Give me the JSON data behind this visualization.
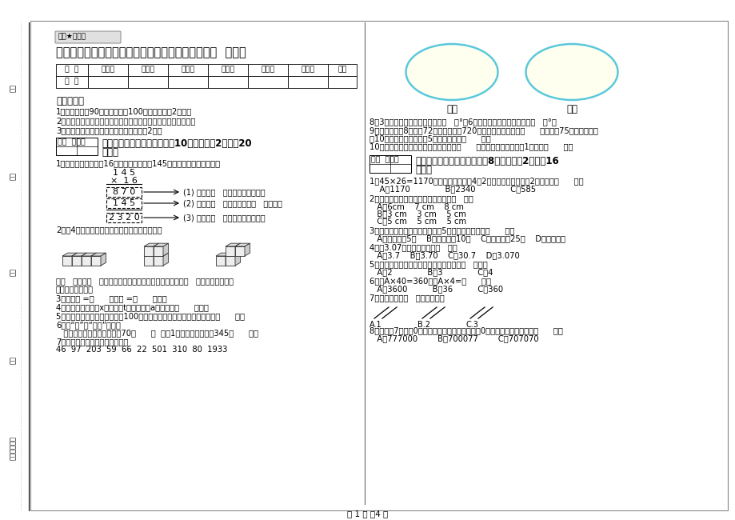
{
  "bg_color": "#ffffff",
  "page_width": 9.2,
  "page_height": 6.5,
  "title": "鄂尔多斯市重点小学四年级数学下学期能力检测试题  附答案",
  "watermark": "绝密★启用前",
  "table_headers": [
    "题  号",
    "填空题",
    "选择题",
    "判断题",
    "计算题",
    "综合题",
    "应用题",
    "总分"
  ],
  "table_row": [
    "得  分",
    "",
    "",
    "",
    "",
    "",
    "",
    ""
  ],
  "notice_title": "考试须知：",
  "notice_items": [
    "1、考试时间：90分钟，满分为100分（含卷面分2分）。",
    "2、请首先按要求在试卷的指定位置域写您的姓名、班级、学号。",
    "3、不要在试卷上乱写乱画，卷面不整洁扠2分。"
  ],
  "section1_header": "一、用心思考，正确填空（入10小题，每题2分，入20",
  "section1_suffix": "分）。",
  "q1_text": "1、王老板进货，买了16套服装，每套服装145元。根据条件完成填空。",
  "multiplication": [
    "1 4 5",
    "×  1 6",
    "8 7 0",
    "1 4 5",
    "2 3 2 0"
  ],
  "mult_annotations": [
    "(1) 表示买（   ）套服装应付的錢。",
    "(2) 表示买（   ）套服装应付（   ）元錢。",
    "(3) 表示买（   ）套服装应付的錢。"
  ],
  "q2_text": "2、用4个同样大的正方体分别摆成下面的形状：",
  "q2_bottom": "从（   ）面和（   ）面看，这三个物体的形状完全相同；从（   ）面看，这三个物",
  "q2_bottom2": "的形状各不相同。",
  "q3_text": "3、一周角 =（      ）直角 =（      ）平角",
  "q4_text": "4、一个工厂原有煮x吞，烧了t天，每天烧a吞，还剩（      ）吞。",
  "q5_text": "5、喷火坦克的火焰可以以每秒100米的射速喷向目标，它的速度可写作（      ）。",
  "q6_title": "6、用“升”和“毫升”填空。",
  "q6_text": "   太阳能热水器的水筱能装汴70（      ）  一符1小洋人妙恋饮料是345（      ）。",
  "q7_text": "7、把下列各数填入相应的圈里。",
  "q7_numbers": "46  97  203  59  66  22  501  310  80  1933",
  "oval_labels": [
    "奇数",
    "偶数"
  ],
  "q8_text": "8、3时整，时针与分钟的夹角是（   ）°；6时整，时针与分钟的夹角是（   ）°。",
  "q9_text": "9、一个因数是8，积是72，要使积变成720，则另一个因数应该（      ）；积是75，一个因数扩",
  "q9_text2": "兤10倍，另一个因数缩小5倍，则积变成（      ）。",
  "q10_text": "10、最小的五位数和最大的四位数相差（      ），比最小的六位数多1的数是（      ）。",
  "section2_header": "二、反复比较，慎重选择（兲8小题，每题2分，入16",
  "section2_suffix": "分）。",
  "mc1_text": "1、45×26=1170，其中一个因数执4大2倍，另一个因数缩小2倍，积是（      ）。",
  "mc1_opts": "    A、1170              B、2340              C、585",
  "mc2_text": "2、下面各组线段不能围成三角形的是（   ）。",
  "mc2_opts_a": "   A、6cm    7 cm    8 cm",
  "mc2_opts_b": "   B、3 cm    3 cm    5 cm",
  "mc2_opts_c": "   C、5 cm    5 cm    5 cm",
  "mc3_text": "3、乘法算式中，两个因数都扩大5倍，得到的积等于（      ）。",
  "mc3_opts": "   A、原来积的5倍    B、原来积的10倍    C、原来积的25倍    D、原来的积",
  "mc4_text": "4、与3.07大小相等的数是（   ）。",
  "mc4_opts": "   A、3.7    B、3.70    C、30.7    D、3.070",
  "mc5_text": "5、两条互相垂直的直线相交所成的直角有（   ）个。",
  "mc5_opts": "   A、2              B、3              C、4",
  "mc6_text": "6、若A×40=360，则A×4=（      ）。",
  "mc6_opts": "   A、3600          B、36          C、360",
  "mc7_text": "7、在下图中有（   ）组平行线。",
  "mc8_text": "8、用三个7和三个0组成的六位数，读数时，一个0也不读出来，这个数是（      ）。",
  "mc8_opts": "   A、777000        B、700077        C、707070",
  "footer": "第 1 页 兲4 页",
  "score_box_text": "得分  评卷人",
  "left_labels": [
    "考号",
    "姓名",
    "班级",
    "学校",
    "乡镇（街道）"
  ]
}
